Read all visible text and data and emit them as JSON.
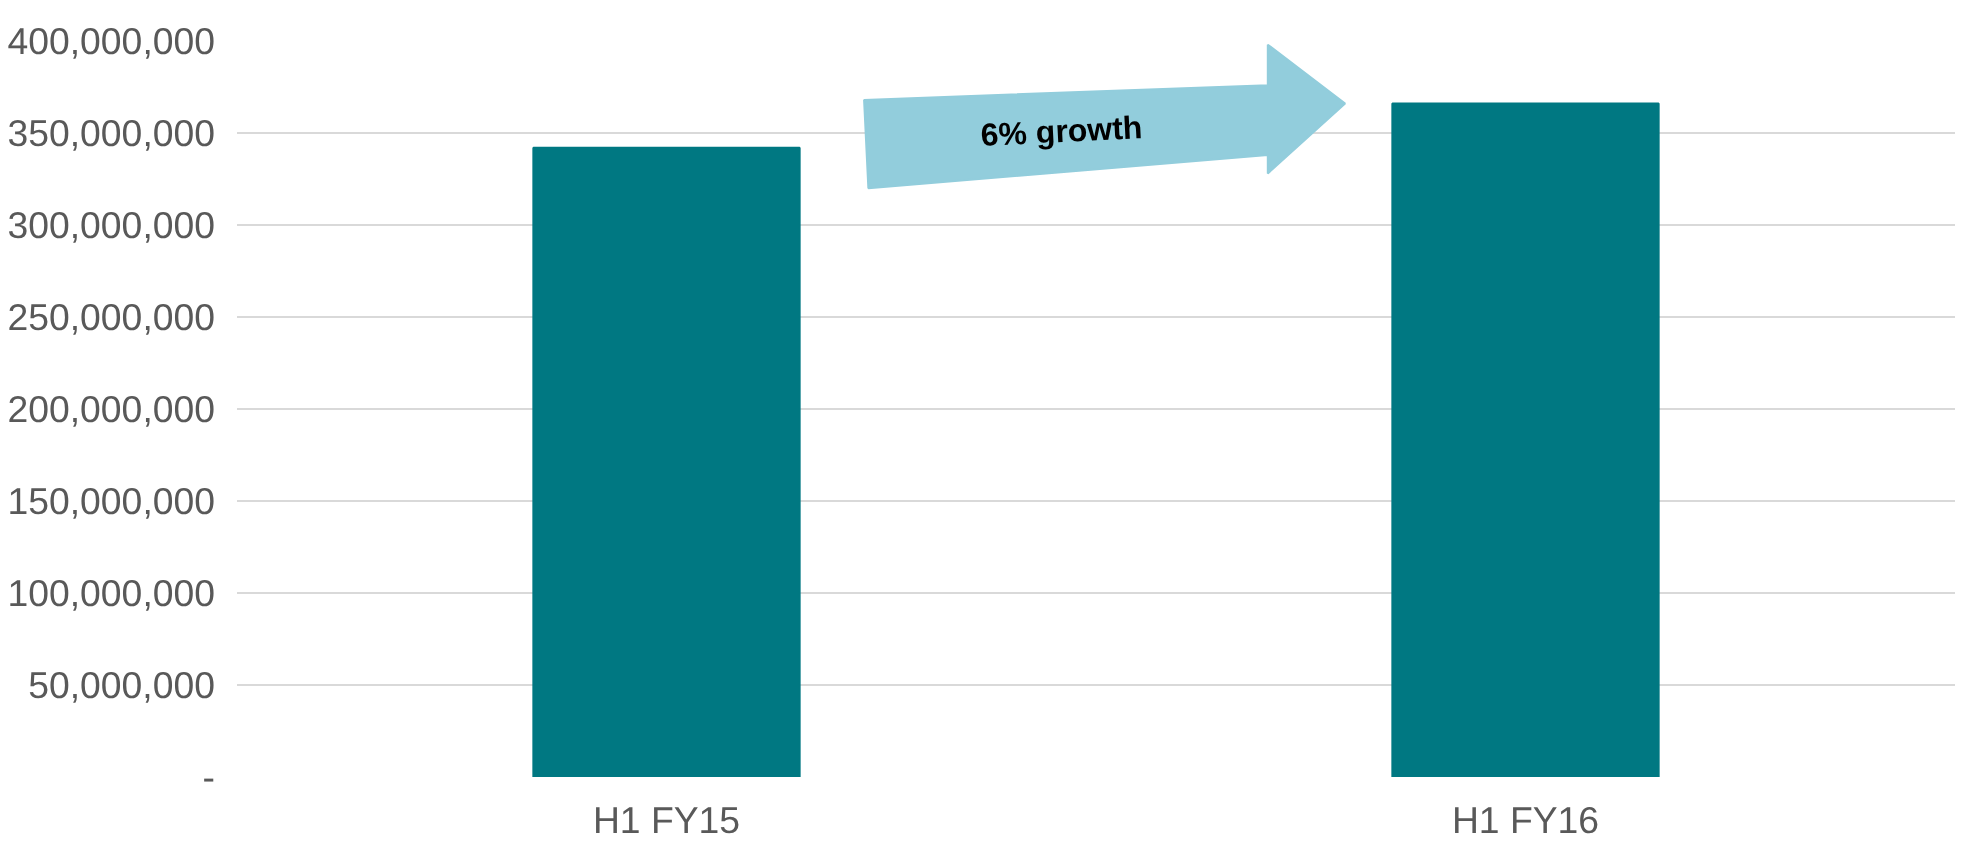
{
  "chart_data": {
    "type": "bar",
    "categories": [
      "H1 FY15",
      "H1 FY16"
    ],
    "values": [
      342000000,
      366000000
    ],
    "color": "#007882",
    "ylim": [
      0,
      400000000
    ],
    "yticks": [
      {
        "value": 0,
        "label": "-"
      },
      {
        "value": 50000000,
        "label": "50,000,000"
      },
      {
        "value": 100000000,
        "label": "100,000,000"
      },
      {
        "value": 150000000,
        "label": "150,000,000"
      },
      {
        "value": 200000000,
        "label": "200,000,000"
      },
      {
        "value": 250000000,
        "label": "250,000,000"
      },
      {
        "value": 300000000,
        "label": "300,000,000"
      },
      {
        "value": 350000000,
        "label": "350,000,000"
      },
      {
        "value": 400000000,
        "label": "400,000,000"
      }
    ],
    "grid": "y",
    "annotations": [
      "6% growth"
    ]
  }
}
